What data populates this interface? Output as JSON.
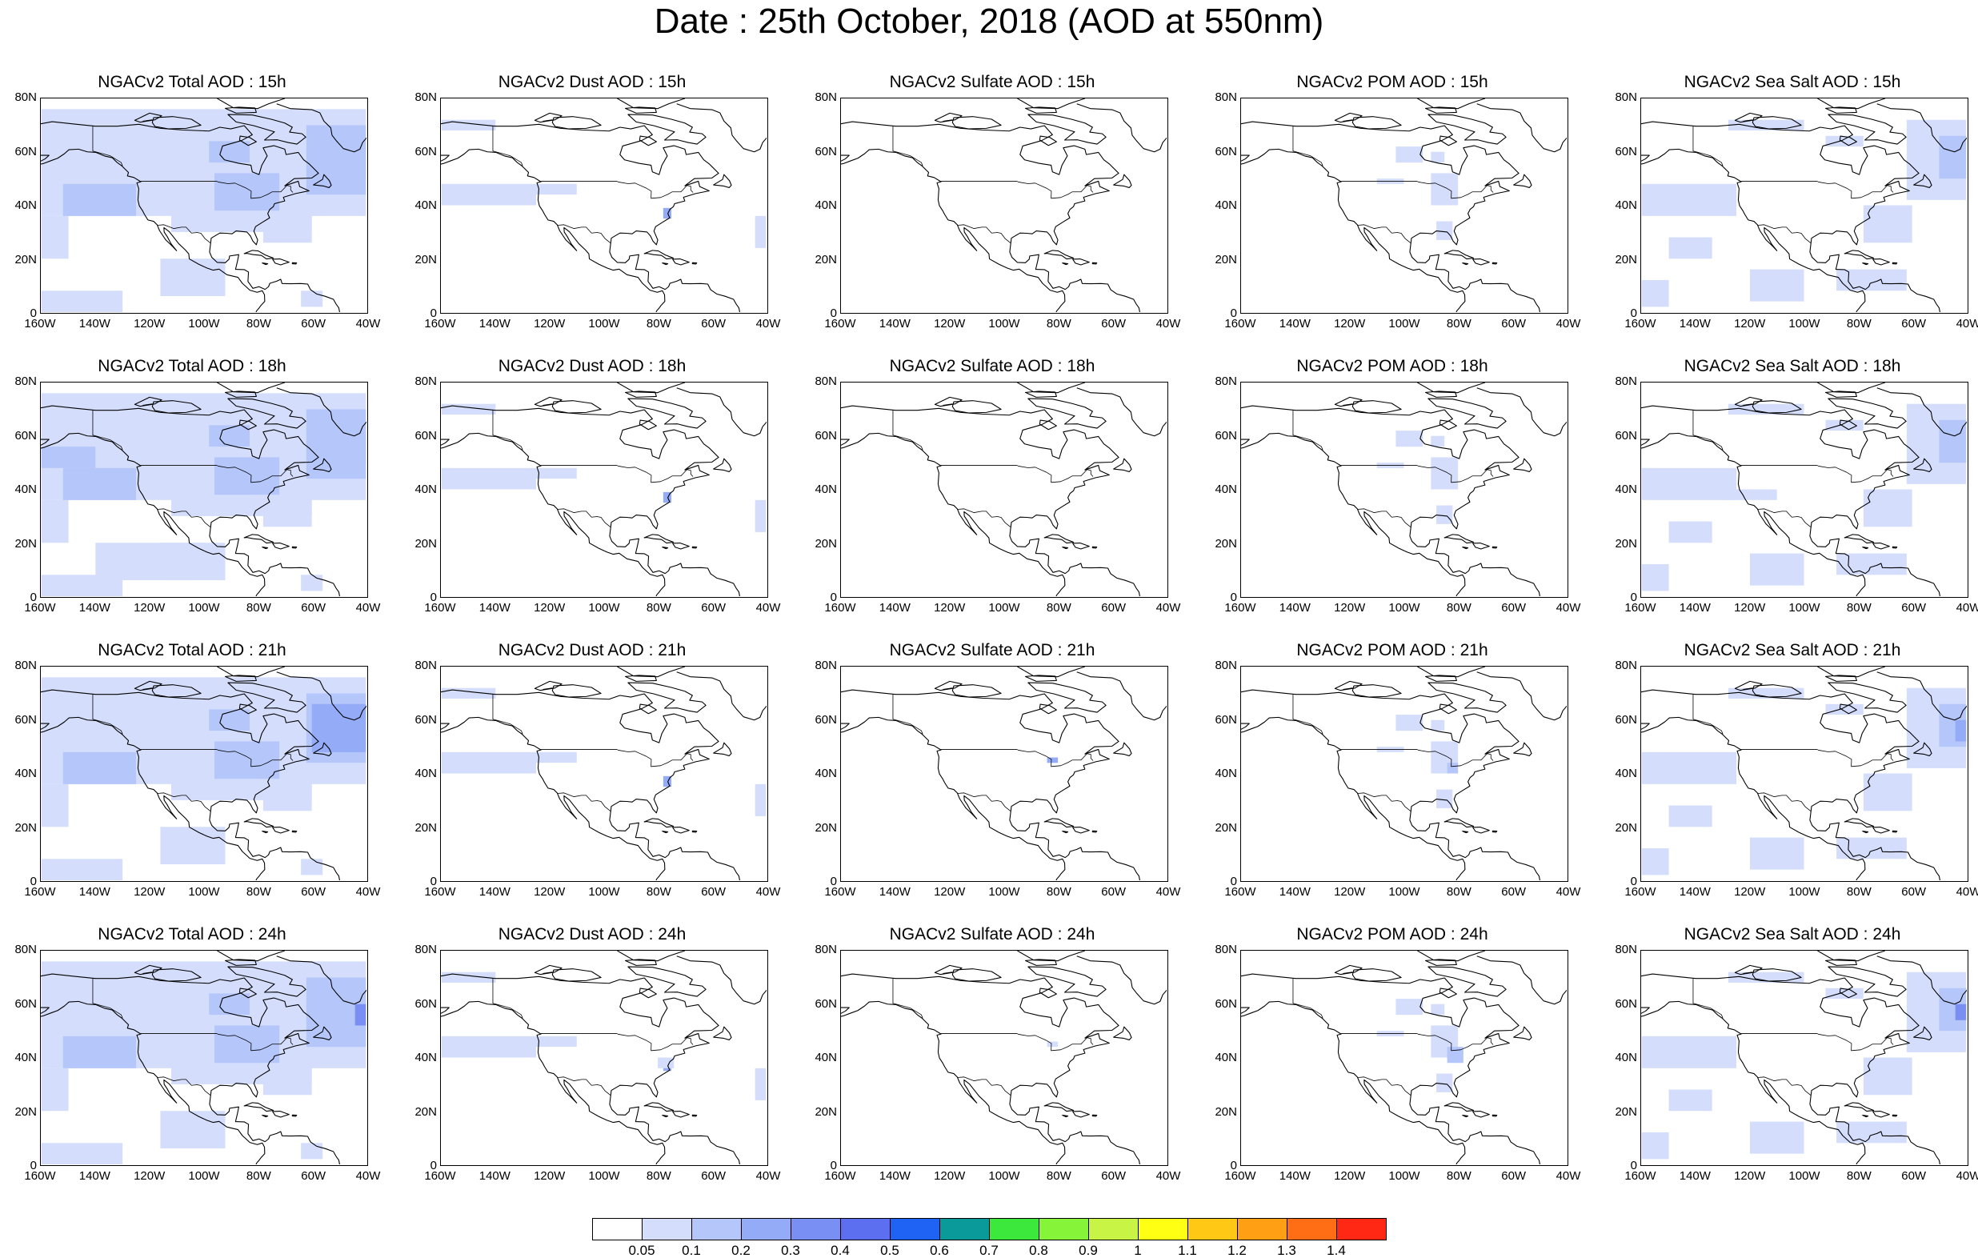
{
  "title": "Date : 25th October, 2018 (AOD at 550nm)",
  "map_axes": {
    "y_ticks": [
      "80N",
      "60N",
      "40N",
      "20N",
      "0"
    ],
    "x_ticks": [
      "160W",
      "140W",
      "120W",
      "100W",
      "80W",
      "60W",
      "40W"
    ],
    "lon_range": [
      -160,
      -40
    ],
    "lat_range": [
      0,
      80
    ]
  },
  "panels": [
    [
      "NGACv2 Total AOD : 15h",
      "NGACv2 Dust AOD : 15h",
      "NGACv2 Sulfate AOD : 15h",
      "NGACv2 POM AOD : 15h",
      "NGACv2 Sea Salt AOD : 15h"
    ],
    [
      "NGACv2 Total AOD : 18h",
      "NGACv2 Dust AOD : 18h",
      "NGACv2 Sulfate AOD : 18h",
      "NGACv2 POM AOD : 18h",
      "NGACv2 Sea Salt AOD : 18h"
    ],
    [
      "NGACv2 Total AOD : 21h",
      "NGACv2 Dust AOD : 21h",
      "NGACv2 Sulfate AOD : 21h",
      "NGACv2 POM AOD : 21h",
      "NGACv2 Sea Salt AOD : 21h"
    ],
    [
      "NGACv2 Total AOD : 24h",
      "NGACv2 Dust AOD : 24h",
      "NGACv2 Sulfate AOD : 24h",
      "NGACv2 POM AOD : 24h",
      "NGACv2 Sea Salt  AOD : 24h"
    ]
  ],
  "colorbar": {
    "labels": [
      "0.05",
      "0.1",
      "0.2",
      "0.3",
      "0.4",
      "0.5",
      "0.6",
      "0.7",
      "0.8",
      "0.9",
      "1",
      "1.1",
      "1.2",
      "1.3",
      "1.4"
    ],
    "colors": [
      "#ffffff",
      "#d4defc",
      "#b4c6fa",
      "#94acf7",
      "#7a8ff3",
      "#5b6ff0",
      "#1f63f5",
      "#0b9a9a",
      "#3ce83c",
      "#86f53a",
      "#c8f545",
      "#ffff14",
      "#ffc814",
      "#ffa014",
      "#ff6e14",
      "#ff2814"
    ]
  },
  "colors": {
    "coastline": "#000000",
    "aod_low": "#d4defc",
    "aod_mid": "#b4c6fa",
    "aod_high": "#94acf7",
    "aod_peak": "#5b6ff0"
  }
}
